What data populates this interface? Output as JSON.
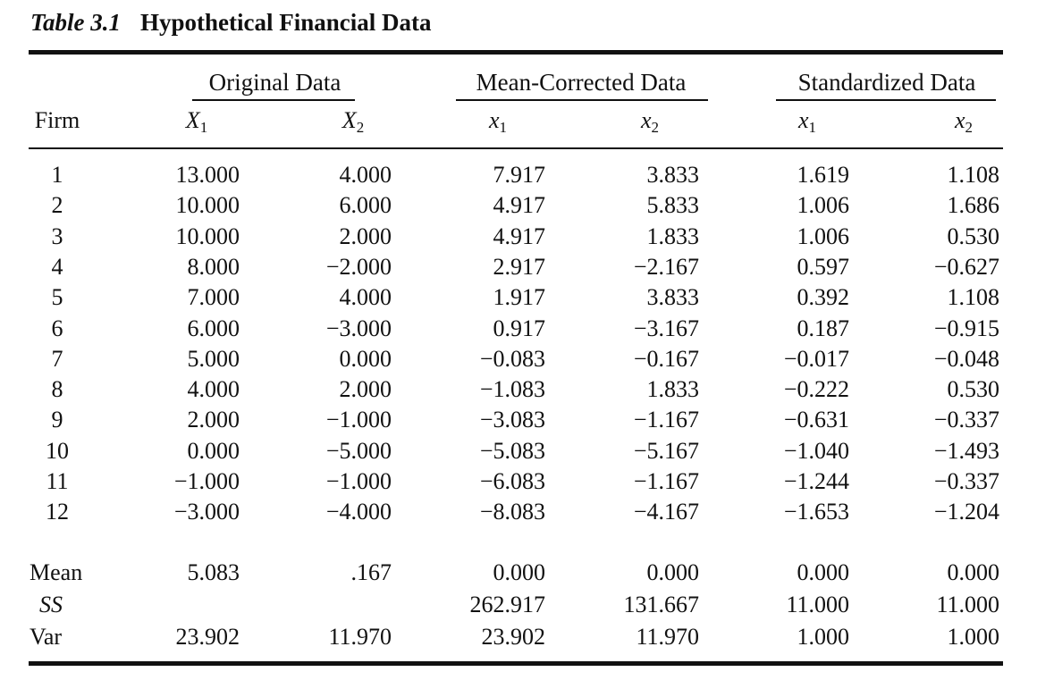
{
  "caption": {
    "number": "Table 3.1",
    "title": "Hypothetical Financial Data"
  },
  "groups": [
    "Original Data",
    "Mean-Corrected Data",
    "Standardized Data"
  ],
  "columns": [
    {
      "label": "Firm",
      "sub": ""
    },
    {
      "label": "X",
      "sub": "1"
    },
    {
      "label": "X",
      "sub": "2"
    },
    {
      "label": "x",
      "sub": "1"
    },
    {
      "label": "x",
      "sub": "2"
    },
    {
      "label": "x",
      "sub": "1"
    },
    {
      "label": "x",
      "sub": "2"
    }
  ],
  "rows": [
    [
      "1",
      "13.000",
      "4.000",
      "7.917",
      "3.833",
      "1.619",
      "1.108"
    ],
    [
      "2",
      "10.000",
      "6.000",
      "4.917",
      "5.833",
      "1.006",
      "1.686"
    ],
    [
      "3",
      "10.000",
      "2.000",
      "4.917",
      "1.833",
      "1.006",
      "0.530"
    ],
    [
      "4",
      "8.000",
      "−2.000",
      "2.917",
      "−2.167",
      "0.597",
      "−0.627"
    ],
    [
      "5",
      "7.000",
      "4.000",
      "1.917",
      "3.833",
      "0.392",
      "1.108"
    ],
    [
      "6",
      "6.000",
      "−3.000",
      "0.917",
      "−3.167",
      "0.187",
      "−0.915"
    ],
    [
      "7",
      "5.000",
      "0.000",
      "−0.083",
      "−0.167",
      "−0.017",
      "−0.048"
    ],
    [
      "8",
      "4.000",
      "2.000",
      "−1.083",
      "1.833",
      "−0.222",
      "0.530"
    ],
    [
      "9",
      "2.000",
      "−1.000",
      "−3.083",
      "−1.167",
      "−0.631",
      "−0.337"
    ],
    [
      "10",
      "0.000",
      "−5.000",
      "−5.083",
      "−5.167",
      "−1.040",
      "−1.493"
    ],
    [
      "11",
      "−1.000",
      "−1.000",
      "−6.083",
      "−1.167",
      "−1.244",
      "−0.337"
    ],
    [
      "12",
      "−3.000",
      "−4.000",
      "−8.083",
      "−4.167",
      "−1.653",
      "−1.204"
    ]
  ],
  "summary": [
    [
      "Mean",
      "5.083",
      ".167",
      "0.000",
      "0.000",
      "0.000",
      "0.000"
    ],
    [
      "SS",
      "",
      "",
      "262.917",
      "131.667",
      "11.000",
      "11.000"
    ],
    [
      "Var",
      "23.902",
      "11.970",
      "23.902",
      "11.970",
      "1.000",
      "1.000"
    ]
  ]
}
